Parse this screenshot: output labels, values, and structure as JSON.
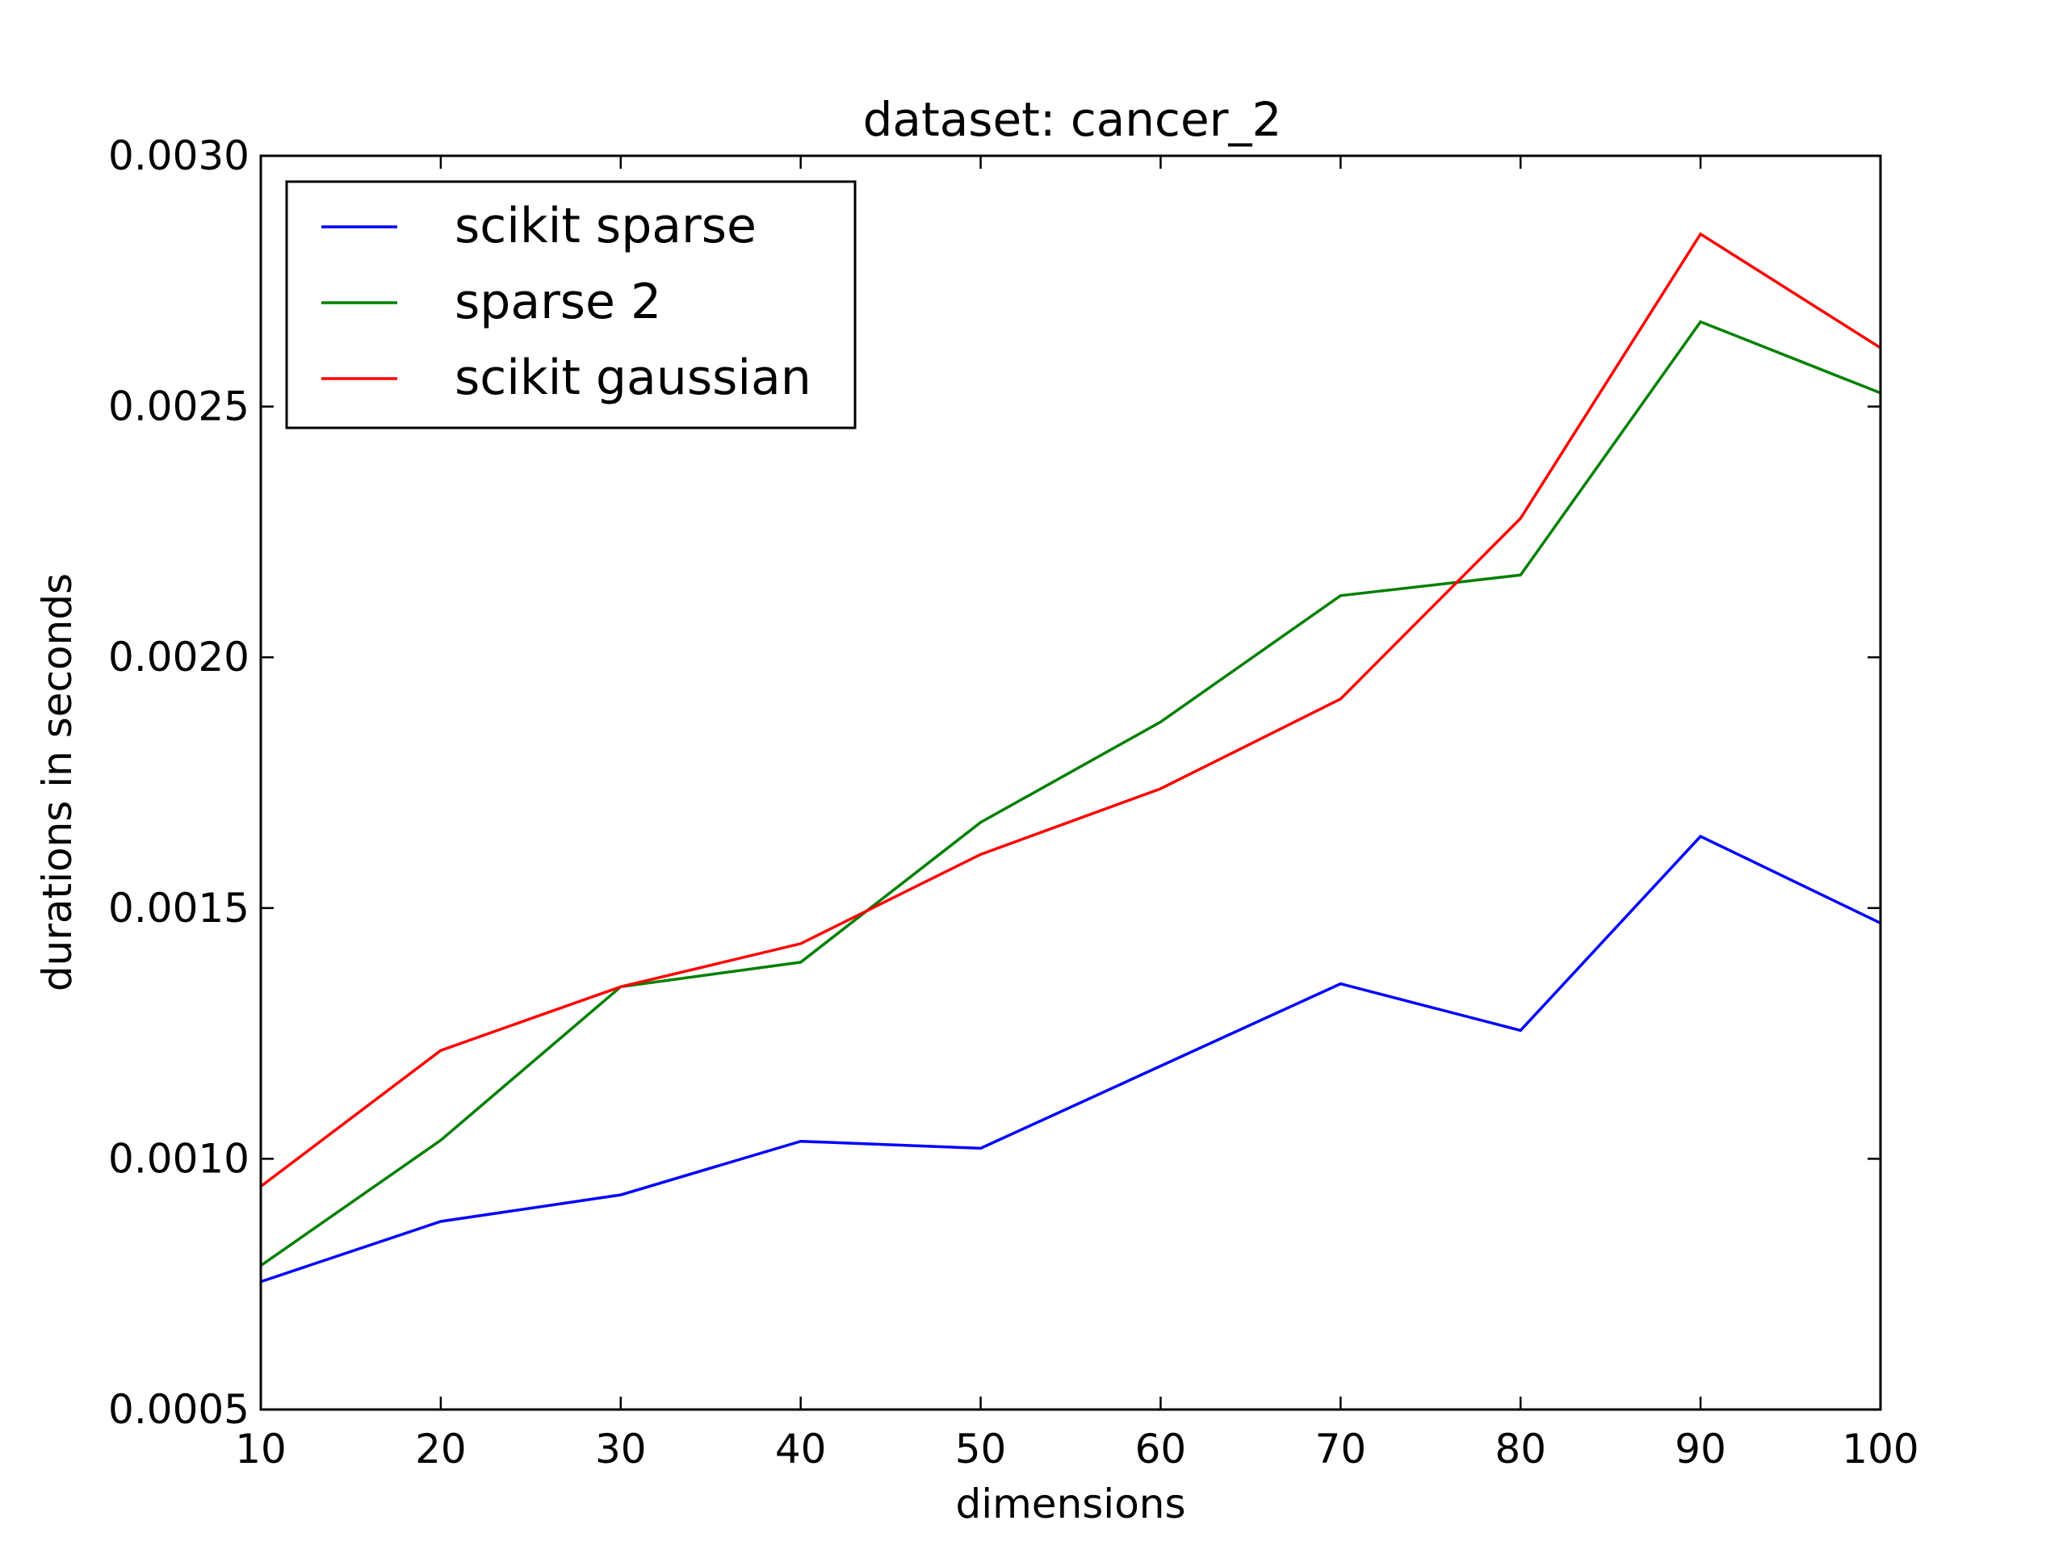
{
  "chart_data": {
    "type": "line",
    "title": "dataset: cancer_2",
    "xlabel": "dimensions",
    "ylabel": "durations in seconds",
    "x": [
      10,
      20,
      30,
      40,
      50,
      60,
      70,
      80,
      90,
      100
    ],
    "xlim": [
      10,
      100
    ],
    "ylim": [
      0.0005,
      0.003
    ],
    "xticks": [
      10,
      20,
      30,
      40,
      50,
      60,
      70,
      80,
      90,
      100
    ],
    "xtick_labels": [
      "10",
      "20",
      "30",
      "40",
      "50",
      "60",
      "70",
      "80",
      "90",
      "100"
    ],
    "yticks": [
      0.0005,
      0.001,
      0.0015,
      0.002,
      0.0025,
      0.003
    ],
    "ytick_labels": [
      "0.0005",
      "0.0010",
      "0.0015",
      "0.0020",
      "0.0025",
      "0.0030"
    ],
    "grid": false,
    "legend_position": "top-left",
    "series": [
      {
        "name": "scikit sparse",
        "color": "#0000ff",
        "values": [
          0.000755,
          0.000875,
          0.000928,
          0.001035,
          0.001021,
          0.001185,
          0.001349,
          0.001256,
          0.001643,
          0.00147
        ]
      },
      {
        "name": "sparse 2",
        "color": "#008000",
        "values": [
          0.000787,
          0.001037,
          0.001343,
          0.001392,
          0.001671,
          0.001871,
          0.002123,
          0.002164,
          0.002669,
          0.002527
        ]
      },
      {
        "name": "scikit gaussian",
        "color": "#ff0000",
        "values": [
          0.000945,
          0.001216,
          0.001343,
          0.001429,
          0.001607,
          0.001738,
          0.001917,
          0.002277,
          0.002844,
          0.002617
        ]
      }
    ]
  }
}
